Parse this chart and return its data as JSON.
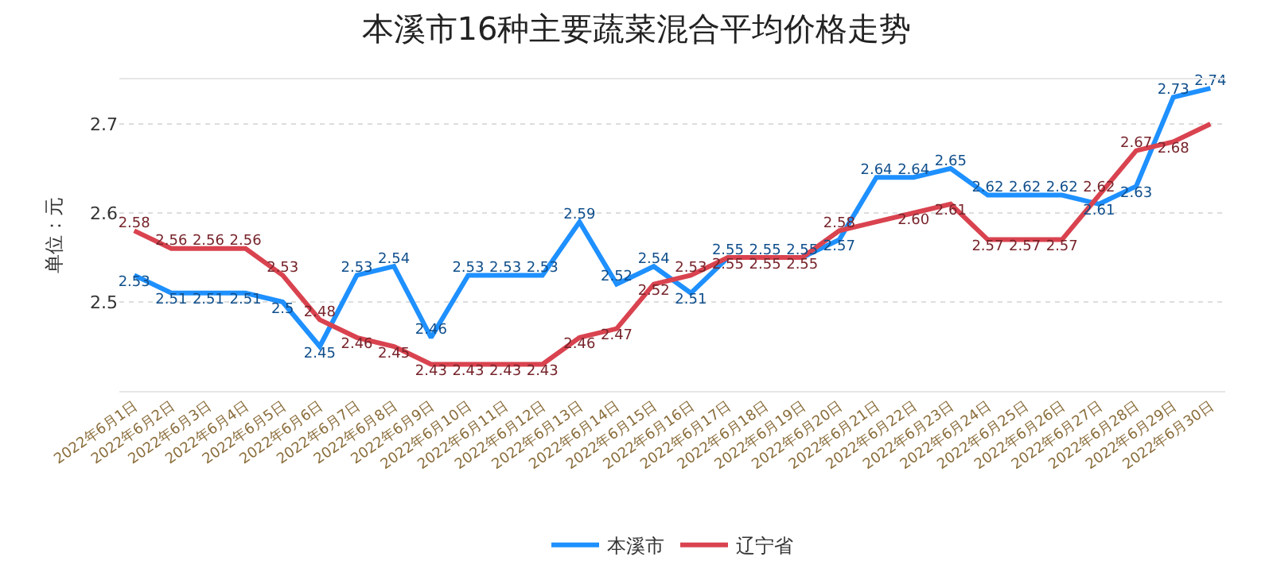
{
  "chart_data": {
    "type": "line",
    "title": "本溪市16种主要蔬菜混合平均价格走势",
    "ylabel": "单位：元",
    "categories": [
      "2022年6月1日",
      "2022年6月2日",
      "2022年6月3日",
      "2022年6月4日",
      "2022年6月5日",
      "2022年6月6日",
      "2022年6月7日",
      "2022年6月8日",
      "2022年6月9日",
      "2022年6月10日",
      "2022年6月11日",
      "2022年6月12日",
      "2022年6月13日",
      "2022年6月14日",
      "2022年6月15日",
      "2022年6月16日",
      "2022年6月17日",
      "2022年6月18日",
      "2022年6月19日",
      "2022年6月20日",
      "2022年6月21日",
      "2022年6月22日",
      "2022年6月23日",
      "2022年6月24日",
      "2022年6月25日",
      "2022年6月26日",
      "2022年6月27日",
      "2022年6月28日",
      "2022年6月29日",
      "2022年6月30日"
    ],
    "series": [
      {
        "name": "本溪市",
        "color": "#1e90ff",
        "values": [
          2.53,
          2.51,
          2.51,
          2.51,
          2.5,
          2.45,
          2.53,
          2.54,
          2.46,
          2.53,
          2.53,
          2.53,
          2.59,
          2.52,
          2.54,
          2.51,
          2.55,
          2.55,
          2.55,
          2.57,
          2.64,
          2.64,
          2.65,
          2.62,
          2.62,
          2.62,
          2.61,
          2.63,
          2.73,
          2.74
        ],
        "value_labels": [
          "2.53",
          "2.51",
          "2.51",
          "2.51",
          "2.5",
          "2.45",
          "2.53",
          "2.54",
          "2.46",
          "2.53",
          "2.53",
          "2.53",
          "2.59",
          "2.52",
          "2.54",
          "2.51",
          "2.55",
          "2.55",
          "2.55",
          "2.57",
          "2.64",
          "2.64",
          "2.65",
          "2.62",
          "2.62",
          "2.62",
          "2.61",
          "2.63",
          "2.73",
          "2.74"
        ]
      },
      {
        "name": "辽宁省",
        "color": "#d9434f",
        "values": [
          2.58,
          2.56,
          2.56,
          2.56,
          2.53,
          2.48,
          2.46,
          2.45,
          2.43,
          2.43,
          2.43,
          2.43,
          2.46,
          2.47,
          2.52,
          2.53,
          2.55,
          2.55,
          2.55,
          2.58,
          2.59,
          2.6,
          2.61,
          2.57,
          2.57,
          2.57,
          2.62,
          2.67,
          2.68,
          2.7
        ],
        "value_labels": [
          "2.58",
          "2.56",
          "2.56",
          "2.56",
          "2.53",
          "2.48",
          "2.46",
          "2.45",
          "2.43",
          "2.43",
          "2.43",
          "2.43",
          "2.46",
          "2.47",
          "2.52",
          "2.53",
          "2.55",
          "2.55",
          "2.55",
          "2.58",
          null,
          "2.60",
          "2.61",
          "2.57",
          "2.57",
          "2.57",
          "2.62",
          "2.67",
          "2.68",
          null
        ]
      }
    ],
    "ylim": [
      2.4,
      2.75
    ],
    "yticks": [
      2.5,
      2.6,
      2.7
    ],
    "grid": "y",
    "legend": "bottom",
    "marker": "none",
    "line_style": "solid"
  }
}
